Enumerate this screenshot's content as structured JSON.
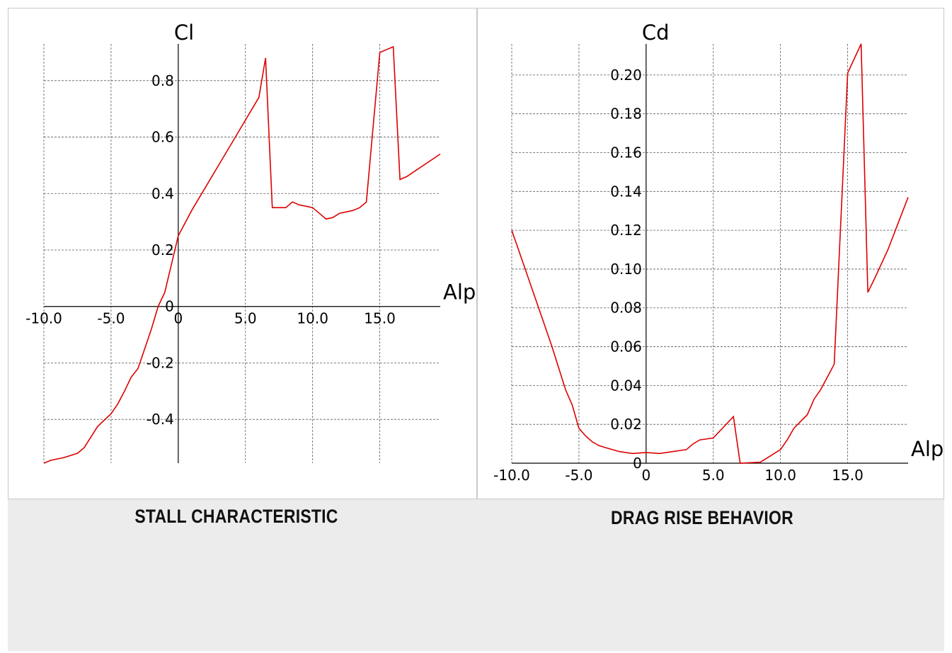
{
  "captions": {
    "left": "STALL CHARACTERISTIC",
    "right": "DRAG RISE BEHAVIOR"
  },
  "colors": {
    "series": "#dd0000",
    "background": "#ececec"
  },
  "chart_data": [
    {
      "type": "line",
      "title": "STALL CHARACTERISTIC",
      "xlabel": "Alp",
      "ylabel": "Cl",
      "xlim": [
        -10,
        19.5
      ],
      "ylim": [
        -0.555,
        0.93
      ],
      "grid": true,
      "x_ticks": [
        -10,
        -5,
        0,
        5,
        10,
        15
      ],
      "x_tick_labels": [
        "-10.0",
        "-5.0",
        "0",
        "5.0",
        "10.0",
        "15.0"
      ],
      "y_ticks": [
        -0.4,
        -0.2,
        0,
        0.2,
        0.4,
        0.6,
        0.8
      ],
      "y_tick_labels": [
        "-0.4",
        "-0.2",
        "0",
        "0.2",
        "0.4",
        "0.6",
        "0.8"
      ],
      "series": [
        {
          "x": [
            -10,
            -9.5,
            -8.5,
            -7.5,
            -7.0,
            -6.0,
            -5.0,
            -4.5,
            -4.0,
            -3.5,
            -3.0,
            -2.0,
            -1.5,
            -1.0,
            0.0,
            1.0,
            2.0,
            3.0,
            4.0,
            5.0,
            6.0,
            6.5,
            7.0,
            8.0,
            8.5,
            9.0,
            10.0,
            10.5,
            11.0,
            11.5,
            12.0,
            12.5,
            13.0,
            13.5,
            14.0,
            15.0,
            16.0,
            16.5,
            17.0,
            19.5
          ],
          "y": [
            -0.555,
            -0.545,
            -0.535,
            -0.52,
            -0.5,
            -0.425,
            -0.38,
            -0.345,
            -0.3,
            -0.25,
            -0.22,
            -0.08,
            0.0,
            0.05,
            0.25,
            0.34,
            0.42,
            0.5,
            0.58,
            0.66,
            0.74,
            0.88,
            0.35,
            0.35,
            0.37,
            0.36,
            0.35,
            0.33,
            0.31,
            0.315,
            0.33,
            0.335,
            0.34,
            0.35,
            0.37,
            0.9,
            0.92,
            0.45,
            0.46,
            0.54
          ]
        }
      ]
    },
    {
      "type": "line",
      "title": "DRAG RISE BEHAVIOR",
      "xlabel": "Alp",
      "ylabel": "Cd",
      "xlim": [
        -10,
        19.5
      ],
      "ylim": [
        0,
        0.216
      ],
      "grid": true,
      "x_ticks": [
        -10,
        -5,
        0,
        5,
        10,
        15
      ],
      "x_tick_labels": [
        "-10.0",
        "-5.0",
        "0",
        "5.0",
        "10.0",
        "15.0"
      ],
      "y_ticks": [
        0,
        0.02,
        0.04,
        0.06,
        0.08,
        0.1,
        0.12,
        0.14,
        0.16,
        0.18,
        0.2
      ],
      "y_tick_labels": [
        "0",
        "0.02",
        "0.04",
        "0.06",
        "0.08",
        "0.10",
        "0.12",
        "0.14",
        "0.16",
        "0.18",
        "0.20"
      ],
      "series": [
        {
          "x": [
            -10,
            -9.0,
            -8.0,
            -7.0,
            -6.0,
            -5.5,
            -5.0,
            -4.5,
            -4.0,
            -3.5,
            -3.0,
            -2.0,
            -1.0,
            0.0,
            1.0,
            2.0,
            3.0,
            3.5,
            4.0,
            5.0,
            6.5,
            7.0,
            8.5,
            10.0,
            10.5,
            11.0,
            12.0,
            12.5,
            13.0,
            14.0,
            15.0,
            16.0,
            16.5,
            17.0,
            18.0,
            19.5
          ],
          "y": [
            0.12,
            0.1,
            0.08,
            0.06,
            0.038,
            0.03,
            0.018,
            0.014,
            0.011,
            0.009,
            0.008,
            0.006,
            0.005,
            0.0055,
            0.005,
            0.006,
            0.007,
            0.01,
            0.012,
            0.013,
            0.024,
            0.0,
            0.0005,
            0.007,
            0.012,
            0.018,
            0.025,
            0.033,
            0.038,
            0.051,
            0.201,
            0.216,
            0.088,
            0.095,
            0.11,
            0.137
          ]
        }
      ]
    }
  ]
}
